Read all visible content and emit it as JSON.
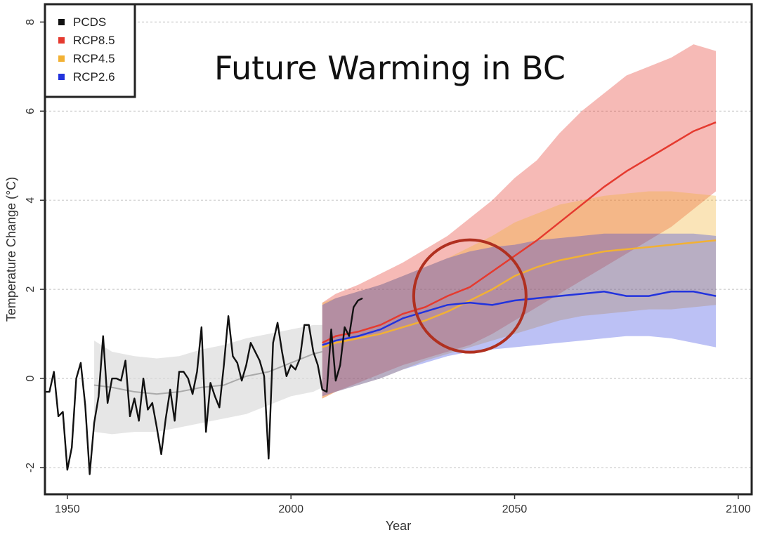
{
  "chart_data": {
    "type": "line",
    "title": "Future Warming in BC",
    "xlabel": "Year",
    "ylabel": "Temperature Change (°C)",
    "xlim": [
      1945,
      2103
    ],
    "ylim": [
      -2.6,
      8.4
    ],
    "x_ticks": [
      1950,
      2000,
      2050,
      2100
    ],
    "y_ticks": [
      -2,
      0,
      2,
      4,
      6,
      8
    ],
    "grid": "horizontal-dotted",
    "legend_position": "top-left",
    "colors": {
      "PCDS": "#111111",
      "RCP8.5": "#e53a2f",
      "RCP4.5": "#f2b134",
      "RCP2.6": "#2233dd",
      "historical_band": "#d9d9d9",
      "highlight_circle": "#b03020"
    },
    "legend": [
      "PCDS",
      "RCP8.5",
      "RCP4.5",
      "RCP2.6"
    ],
    "historical_model": {
      "name": "Historical model",
      "x": [
        1956,
        1960,
        1965,
        1970,
        1975,
        1980,
        1985,
        1990,
        1995,
        2000,
        2005,
        2007
      ],
      "mean": [
        -0.15,
        -0.2,
        -0.3,
        -0.35,
        -0.3,
        -0.2,
        -0.15,
        0.05,
        0.15,
        0.35,
        0.55,
        0.6
      ],
      "lower": [
        -1.2,
        -1.25,
        -1.2,
        -1.2,
        -1.1,
        -1.0,
        -0.9,
        -0.8,
        -0.6,
        -0.4,
        -0.3,
        -0.2
      ],
      "upper": [
        0.85,
        0.6,
        0.5,
        0.45,
        0.5,
        0.65,
        0.75,
        0.9,
        1.0,
        1.1,
        1.2,
        1.2
      ]
    },
    "series": [
      {
        "name": "PCDS",
        "x": [
          1945,
          1946,
          1947,
          1948,
          1949,
          1950,
          1951,
          1952,
          1953,
          1954,
          1955,
          1956,
          1957,
          1958,
          1959,
          1960,
          1961,
          1962,
          1963,
          1964,
          1965,
          1966,
          1967,
          1968,
          1969,
          1970,
          1971,
          1972,
          1973,
          1974,
          1975,
          1976,
          1977,
          1978,
          1979,
          1980,
          1981,
          1982,
          1983,
          1984,
          1985,
          1986,
          1987,
          1988,
          1989,
          1990,
          1991,
          1992,
          1993,
          1994,
          1995,
          1996,
          1997,
          1998,
          1999,
          2000,
          2001,
          2002,
          2003,
          2004,
          2005,
          2006,
          2007,
          2008,
          2009,
          2010,
          2011,
          2012,
          2013,
          2014,
          2015,
          2016
        ],
        "values": [
          -0.3,
          -0.3,
          0.15,
          -0.85,
          -0.75,
          -2.05,
          -1.55,
          0.0,
          0.35,
          -0.6,
          -2.15,
          -1.0,
          -0.4,
          0.95,
          -0.55,
          0.0,
          0.0,
          -0.05,
          0.4,
          -0.85,
          -0.45,
          -0.95,
          0.0,
          -0.7,
          -0.55,
          -1.1,
          -1.7,
          -0.9,
          -0.25,
          -0.95,
          0.15,
          0.15,
          0.0,
          -0.35,
          0.15,
          1.15,
          -1.2,
          -0.1,
          -0.4,
          -0.65,
          0.3,
          1.4,
          0.5,
          0.35,
          -0.05,
          0.3,
          0.8,
          0.6,
          0.4,
          0.05,
          -1.8,
          0.8,
          1.25,
          0.6,
          0.05,
          0.3,
          0.2,
          0.45,
          1.2,
          1.2,
          0.6,
          0.3,
          -0.25,
          -0.3,
          1.1,
          -0.05,
          0.3,
          1.15,
          0.95,
          1.6,
          1.75,
          1.8
        ]
      },
      {
        "name": "RCP8.5",
        "x": [
          2007,
          2010,
          2015,
          2020,
          2025,
          2030,
          2035,
          2040,
          2045,
          2050,
          2055,
          2060,
          2065,
          2070,
          2075,
          2080,
          2085,
          2090,
          2095
        ],
        "mean": [
          0.8,
          0.95,
          1.05,
          1.2,
          1.45,
          1.6,
          1.85,
          2.05,
          2.4,
          2.75,
          3.1,
          3.5,
          3.9,
          4.3,
          4.65,
          4.95,
          5.25,
          5.55,
          5.75
        ],
        "lower": [
          -0.45,
          -0.3,
          -0.1,
          0.1,
          0.3,
          0.45,
          0.6,
          0.75,
          1.0,
          1.3,
          1.6,
          1.9,
          2.2,
          2.5,
          2.8,
          3.1,
          3.4,
          3.8,
          4.2
        ],
        "upper": [
          1.7,
          1.9,
          2.1,
          2.35,
          2.6,
          2.9,
          3.2,
          3.6,
          4.0,
          4.5,
          4.9,
          5.5,
          6.0,
          6.4,
          6.8,
          7.0,
          7.2,
          7.5,
          7.35
        ]
      },
      {
        "name": "RCP4.5",
        "x": [
          2007,
          2010,
          2015,
          2020,
          2025,
          2030,
          2035,
          2040,
          2045,
          2050,
          2055,
          2060,
          2065,
          2070,
          2075,
          2080,
          2085,
          2090,
          2095
        ],
        "mean": [
          0.7,
          0.8,
          0.9,
          1.0,
          1.15,
          1.3,
          1.5,
          1.75,
          2.0,
          2.3,
          2.5,
          2.65,
          2.75,
          2.85,
          2.9,
          2.95,
          3.0,
          3.05,
          3.1
        ],
        "lower": [
          -0.45,
          -0.3,
          -0.15,
          0.0,
          0.2,
          0.4,
          0.55,
          0.7,
          0.85,
          1.0,
          1.15,
          1.3,
          1.4,
          1.45,
          1.5,
          1.55,
          1.55,
          1.6,
          1.65
        ],
        "upper": [
          1.7,
          1.8,
          1.95,
          2.1,
          2.3,
          2.5,
          2.7,
          2.95,
          3.2,
          3.5,
          3.7,
          3.9,
          4.0,
          4.1,
          4.15,
          4.2,
          4.2,
          4.15,
          4.1
        ]
      },
      {
        "name": "RCP2.6",
        "x": [
          2007,
          2010,
          2015,
          2020,
          2025,
          2030,
          2035,
          2040,
          2045,
          2050,
          2055,
          2060,
          2065,
          2070,
          2075,
          2080,
          2085,
          2090,
          2095
        ],
        "mean": [
          0.75,
          0.85,
          0.95,
          1.1,
          1.35,
          1.5,
          1.65,
          1.7,
          1.65,
          1.75,
          1.8,
          1.85,
          1.9,
          1.95,
          1.85,
          1.85,
          1.95,
          1.95,
          1.85
        ],
        "lower": [
          -0.4,
          -0.3,
          -0.15,
          0.0,
          0.2,
          0.35,
          0.5,
          0.6,
          0.65,
          0.7,
          0.75,
          0.8,
          0.85,
          0.9,
          0.95,
          0.95,
          0.9,
          0.8,
          0.7
        ],
        "upper": [
          1.65,
          1.8,
          1.95,
          2.1,
          2.3,
          2.5,
          2.7,
          2.85,
          2.95,
          3.0,
          3.1,
          3.15,
          3.2,
          3.25,
          3.25,
          3.25,
          3.25,
          3.25,
          3.2
        ]
      }
    ],
    "annotation": {
      "type": "circle",
      "x": 2040,
      "y": 1.85,
      "label": "highlight"
    }
  }
}
